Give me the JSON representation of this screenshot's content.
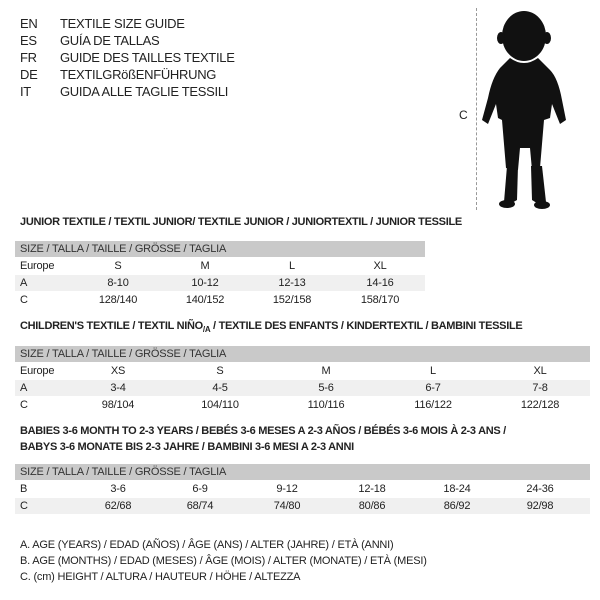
{
  "languages": [
    {
      "code": "EN",
      "title": "TEXTILE SIZE GUIDE"
    },
    {
      "code": "ES",
      "title": "GUÍA DE TALLAS"
    },
    {
      "code": "FR",
      "title": "GUIDE DES TAILLES TEXTILE"
    },
    {
      "code": "DE",
      "title": "TEXTILGRößENFÜHRUNG"
    },
    {
      "code": "IT",
      "title": "GUIDA ALLE TAGLIE TESSILI"
    }
  ],
  "figure": {
    "measure_label": "C",
    "icon": "child-silhouette-icon"
  },
  "junior": {
    "title": "JUNIOR TEXTILE / TEXTIL JUNIOR/ TEXTILE JUNIOR / JUNIORTEXTIL / JUNIOR TESSILE",
    "header": "SIZE / TALLA / TAILLE / GRÖSSE / TAGLIA",
    "rows": [
      {
        "label": "Europe",
        "cells": [
          "S",
          "M",
          "L",
          "XL"
        ]
      },
      {
        "label": "A",
        "cells": [
          "8-10",
          "10-12",
          "12-13",
          "14-16"
        ]
      },
      {
        "label": "C",
        "cells": [
          "128/140",
          "140/152",
          "152/158",
          "158/170"
        ]
      }
    ]
  },
  "children": {
    "title_pre": "CHILDREN'S TEXTILE / TEXTIL NIÑO",
    "title_sub": "/A",
    "title_post": " / TEXTILE DES ENFANTS / KINDERTEXTIL / BAMBINI TESSILE",
    "header": "SIZE / TALLA / TAILLE / GRÖSSE / TAGLIA",
    "rows": [
      {
        "label": "Europe",
        "cells": [
          "XS",
          "S",
          "M",
          "L",
          "XL"
        ]
      },
      {
        "label": "A",
        "cells": [
          "3-4",
          "4-5",
          "5-6",
          "6-7",
          "7-8"
        ]
      },
      {
        "label": "C",
        "cells": [
          "98/104",
          "104/110",
          "110/116",
          "116/122",
          "122/128"
        ]
      }
    ]
  },
  "babies": {
    "title_line1": "BABIES 3-6 MONTH TO 2-3 YEARS / BEBÉS 3-6 MESES A 2-3 AÑOS / BÉBÉS 3-6 MOIS À 2-3 ANS /",
    "title_line2": "BABYS 3-6 MONATE BIS 2-3 JAHRE / BAMBINI 3-6 MESI A 2-3 ANNI",
    "header": "SIZE / TALLA / TAILLE / GRÖSSE / TAGLIA",
    "rows": [
      {
        "label": "B",
        "cells": [
          "3-6",
          "6-9",
          "9-12",
          "12-18",
          "18-24",
          "24-36"
        ]
      },
      {
        "label": "C",
        "cells": [
          "62/68",
          "68/74",
          "74/80",
          "80/86",
          "86/92",
          "92/98"
        ]
      }
    ]
  },
  "legend": [
    "A. AGE (YEARS) / EDAD (AÑOS) / ÂGE (ANS) / ALTER (JAHRE) / ETÀ (ANNI)",
    "B. AGE (MONTHS) / EDAD (MESES) / ÂGE (MOIS) / ALTER (MONATE) / ETÀ (MESI)",
    "C. (cm) HEIGHT / ALTURA / HAUTEUR / HÖHE / ALTEZZA"
  ]
}
